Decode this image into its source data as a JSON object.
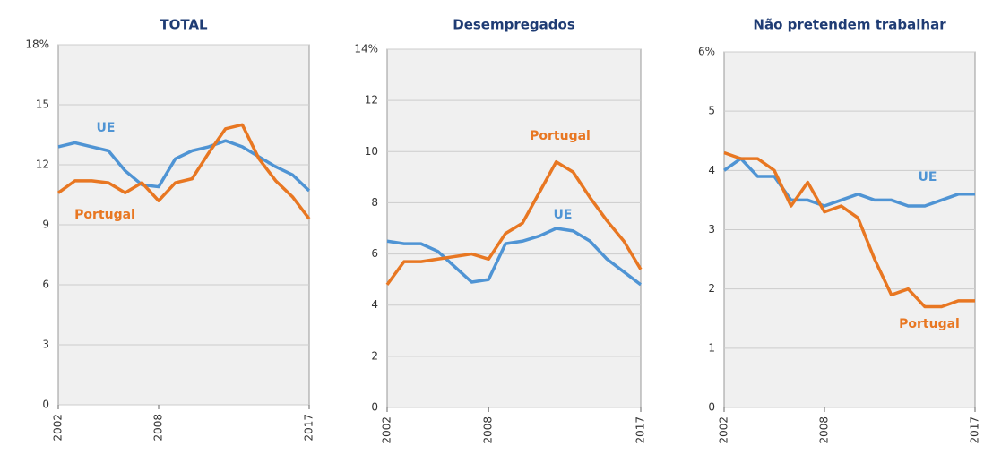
{
  "chart_data": [
    {
      "type": "line",
      "title": "TOTAL",
      "x": [
        2002,
        2003,
        2004,
        2005,
        2006,
        2007,
        2008,
        2009,
        2010,
        2011,
        2012,
        2013,
        2014,
        2015,
        2016,
        2017
      ],
      "xlim": [
        2002,
        2017
      ],
      "xticks": [
        2002,
        2008,
        2017
      ],
      "ylim": [
        0,
        18
      ],
      "yticks": [
        0,
        3,
        6,
        9,
        12,
        15,
        {
          "value": 18,
          "label": "18%"
        }
      ],
      "grid": true,
      "series": [
        {
          "name": "UE",
          "color": "#4f94d4",
          "values": [
            12.9,
            13.1,
            12.9,
            12.7,
            11.7,
            11.0,
            10.9,
            12.3,
            12.7,
            12.9,
            13.2,
            12.9,
            12.4,
            11.9,
            11.5,
            10.7
          ]
        },
        {
          "name": "Portugal",
          "color": "#e87722",
          "values": [
            10.6,
            11.2,
            11.2,
            11.1,
            10.6,
            11.1,
            10.2,
            11.1,
            11.3,
            12.6,
            13.8,
            14.0,
            12.3,
            11.2,
            10.4,
            9.3
          ]
        }
      ]
    },
    {
      "type": "line",
      "title": "Desempregados",
      "x": [
        2002,
        2003,
        2004,
        2005,
        2006,
        2007,
        2008,
        2009,
        2010,
        2011,
        2012,
        2013,
        2014,
        2015,
        2016,
        2017
      ],
      "xlim": [
        2002,
        2017
      ],
      "xticks": [
        2002,
        2008,
        2017
      ],
      "ylim": [
        0,
        14
      ],
      "yticks": [
        0,
        2,
        4,
        6,
        8,
        10,
        12,
        {
          "value": 14,
          "label": "14%"
        }
      ],
      "grid": true,
      "series": [
        {
          "name": "UE",
          "color": "#4f94d4",
          "values": [
            6.5,
            6.4,
            6.4,
            6.1,
            5.5,
            4.9,
            5.0,
            6.4,
            6.5,
            6.7,
            7.0,
            6.9,
            6.5,
            5.8,
            5.3,
            4.8
          ]
        },
        {
          "name": "Portugal",
          "color": "#e87722",
          "values": [
            4.8,
            5.7,
            5.7,
            5.8,
            5.9,
            6.0,
            5.8,
            6.8,
            7.2,
            8.4,
            9.6,
            9.2,
            8.2,
            7.3,
            6.5,
            5.4
          ]
        }
      ]
    },
    {
      "type": "line",
      "title": "Não pretendem trabalhar",
      "x": [
        2002,
        2003,
        2004,
        2005,
        2006,
        2007,
        2008,
        2009,
        2010,
        2011,
        2012,
        2013,
        2014,
        2015,
        2016,
        2017
      ],
      "xlim": [
        2002,
        2017
      ],
      "xticks": [
        2002,
        2008,
        2017
      ],
      "ylim": [
        0,
        6
      ],
      "yticks": [
        0,
        1,
        2,
        3,
        4,
        5,
        {
          "value": 6,
          "label": "6%"
        }
      ],
      "grid": true,
      "series": [
        {
          "name": "UE",
          "color": "#4f94d4",
          "values": [
            4.0,
            4.2,
            3.9,
            3.9,
            3.5,
            3.5,
            3.4,
            3.5,
            3.6,
            3.5,
            3.5,
            3.4,
            3.4,
            3.5,
            3.6,
            3.6
          ]
        },
        {
          "name": "Portugal",
          "color": "#e87722",
          "values": [
            4.3,
            4.2,
            4.2,
            4.0,
            3.4,
            3.8,
            3.3,
            3.4,
            3.2,
            2.5,
            1.9,
            2.0,
            1.7,
            1.7,
            1.8,
            1.8
          ]
        }
      ]
    }
  ]
}
